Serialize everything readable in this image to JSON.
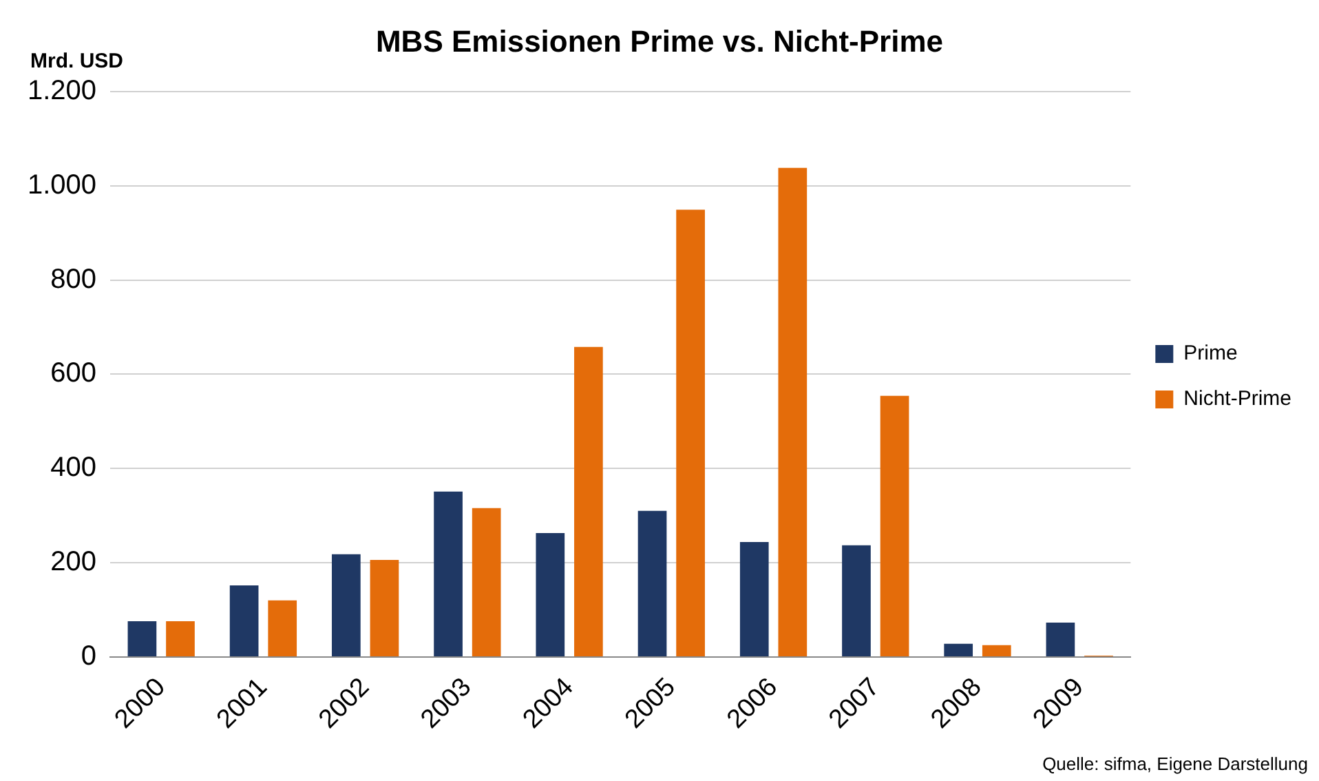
{
  "chart_data": {
    "type": "bar",
    "title": "MBS Emissionen Prime vs. Nicht-Prime",
    "ylabel": "Mrd. USD",
    "categories": [
      "2000",
      "2001",
      "2002",
      "2003",
      "2004",
      "2005",
      "2006",
      "2007",
      "2008",
      "2009"
    ],
    "series": [
      {
        "name": "Prime",
        "color": "#1f3864",
        "values": [
          76,
          152,
          218,
          351,
          263,
          310,
          244,
          237,
          28,
          73
        ]
      },
      {
        "name": "Nicht-Prime",
        "color": "#e46c0a",
        "values": [
          76,
          120,
          206,
          316,
          658,
          949,
          1038,
          554,
          25,
          3
        ]
      }
    ],
    "ylim": [
      0,
      1200
    ],
    "yticks": [
      0,
      200,
      400,
      600,
      800,
      {
        "value": 1000,
        "label": "1.000"
      },
      {
        "value": 1200,
        "label": "1.200"
      }
    ],
    "grid": "y",
    "legend": "right",
    "annotations": [
      "Quelle: sifma, Eigene Darstellung"
    ]
  }
}
